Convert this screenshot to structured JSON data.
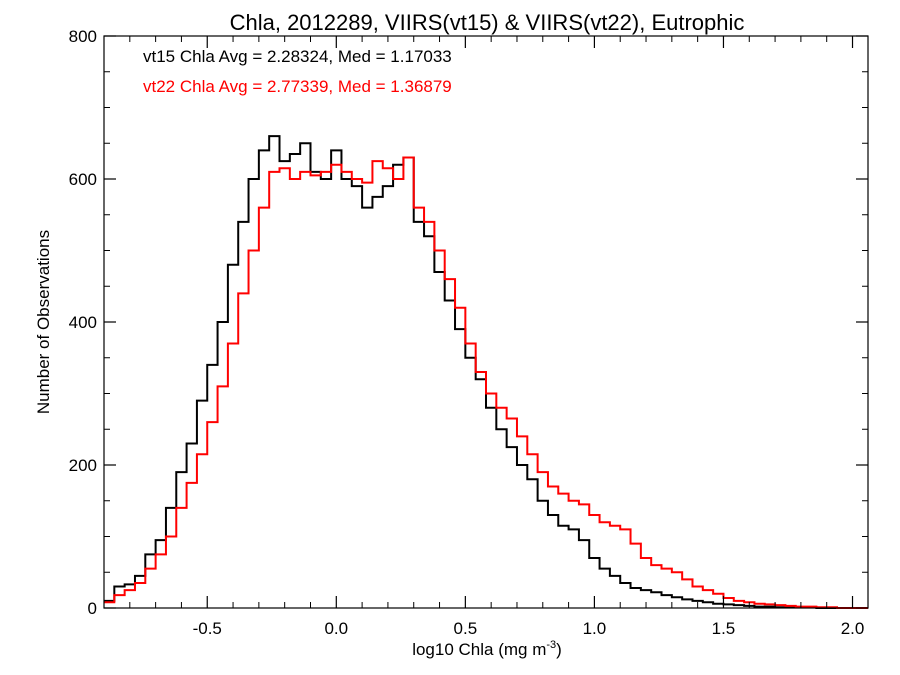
{
  "chart_data": {
    "type": "histogram",
    "title": "Chla, 2012289, VIIRS(vt15) & VIIRS(vt22), Eutrophic",
    "xlabel": "log10 Chla (mg m",
    "xlabel_sup": "-3",
    "xlabel_close": ")",
    "ylabel": "Number of Observations",
    "xlim": [
      -0.9,
      2.06
    ],
    "ylim": [
      0,
      800
    ],
    "xticks": [
      "-0.5",
      "0.0",
      "0.5",
      "1.0",
      "1.5",
      "2.0"
    ],
    "yticks": [
      "0",
      "200",
      "400",
      "600",
      "800"
    ],
    "annotations": [
      {
        "text": "vt15 Chla Avg = 2.28324, Med = 1.17033",
        "color": "#000000"
      },
      {
        "text": "vt22 Chla Avg = 2.77339, Med = 1.36879",
        "color": "#ff0000"
      }
    ],
    "series": [
      {
        "color": "#000000",
        "x": [
          -0.88,
          -0.84,
          -0.8,
          -0.76,
          -0.72,
          -0.68,
          -0.64,
          -0.6,
          -0.56,
          -0.52,
          -0.48,
          -0.44,
          -0.4,
          -0.36,
          -0.32,
          -0.28,
          -0.24,
          -0.2,
          -0.16,
          -0.12,
          -0.08,
          -0.04,
          0.0,
          0.04,
          0.08,
          0.12,
          0.16,
          0.2,
          0.24,
          0.28,
          0.32,
          0.36,
          0.4,
          0.44,
          0.48,
          0.52,
          0.56,
          0.6,
          0.64,
          0.68,
          0.72,
          0.76,
          0.8,
          0.84,
          0.88,
          0.92,
          0.96,
          1.0,
          1.04,
          1.08,
          1.12,
          1.16,
          1.2,
          1.24,
          1.28,
          1.32,
          1.36,
          1.4,
          1.44,
          1.48,
          1.52,
          1.56,
          1.6,
          1.64,
          1.68,
          1.72,
          1.76,
          1.8,
          1.84,
          1.88,
          1.92,
          1.96,
          2.0,
          2.04
        ],
        "values": [
          10,
          30,
          33,
          45,
          75,
          95,
          140,
          190,
          230,
          290,
          340,
          400,
          480,
          540,
          600,
          640,
          660,
          625,
          635,
          650,
          610,
          600,
          640,
          600,
          590,
          560,
          575,
          590,
          620,
          630,
          540,
          520,
          470,
          430,
          390,
          350,
          320,
          280,
          250,
          225,
          200,
          180,
          150,
          130,
          115,
          110,
          95,
          70,
          55,
          45,
          35,
          28,
          25,
          22,
          18,
          15,
          12,
          10,
          8,
          6,
          5,
          4,
          3,
          2,
          2,
          1,
          1,
          1,
          1,
          0,
          0,
          0,
          0,
          0
        ]
      },
      {
        "color": "#ff0000",
        "x": [
          -0.88,
          -0.84,
          -0.8,
          -0.76,
          -0.72,
          -0.68,
          -0.64,
          -0.6,
          -0.56,
          -0.52,
          -0.48,
          -0.44,
          -0.4,
          -0.36,
          -0.32,
          -0.28,
          -0.24,
          -0.2,
          -0.16,
          -0.12,
          -0.08,
          -0.04,
          0.0,
          0.04,
          0.08,
          0.12,
          0.16,
          0.2,
          0.24,
          0.28,
          0.32,
          0.36,
          0.4,
          0.44,
          0.48,
          0.52,
          0.56,
          0.6,
          0.64,
          0.68,
          0.72,
          0.76,
          0.8,
          0.84,
          0.88,
          0.92,
          0.96,
          1.0,
          1.04,
          1.08,
          1.12,
          1.16,
          1.2,
          1.24,
          1.28,
          1.32,
          1.36,
          1.4,
          1.44,
          1.48,
          1.52,
          1.56,
          1.6,
          1.64,
          1.68,
          1.72,
          1.76,
          1.8,
          1.84,
          1.88,
          1.92,
          1.96,
          2.0,
          2.04
        ],
        "values": [
          8,
          18,
          25,
          35,
          55,
          75,
          100,
          140,
          175,
          215,
          260,
          310,
          370,
          440,
          500,
          560,
          610,
          615,
          600,
          610,
          605,
          610,
          620,
          610,
          600,
          595,
          625,
          615,
          600,
          630,
          560,
          540,
          500,
          460,
          420,
          370,
          330,
          300,
          280,
          265,
          240,
          215,
          190,
          170,
          160,
          150,
          145,
          130,
          120,
          115,
          110,
          90,
          70,
          60,
          55,
          50,
          40,
          30,
          25,
          20,
          14,
          10,
          8,
          6,
          5,
          4,
          3,
          2,
          2,
          1,
          1,
          0,
          0,
          0
        ]
      }
    ]
  }
}
